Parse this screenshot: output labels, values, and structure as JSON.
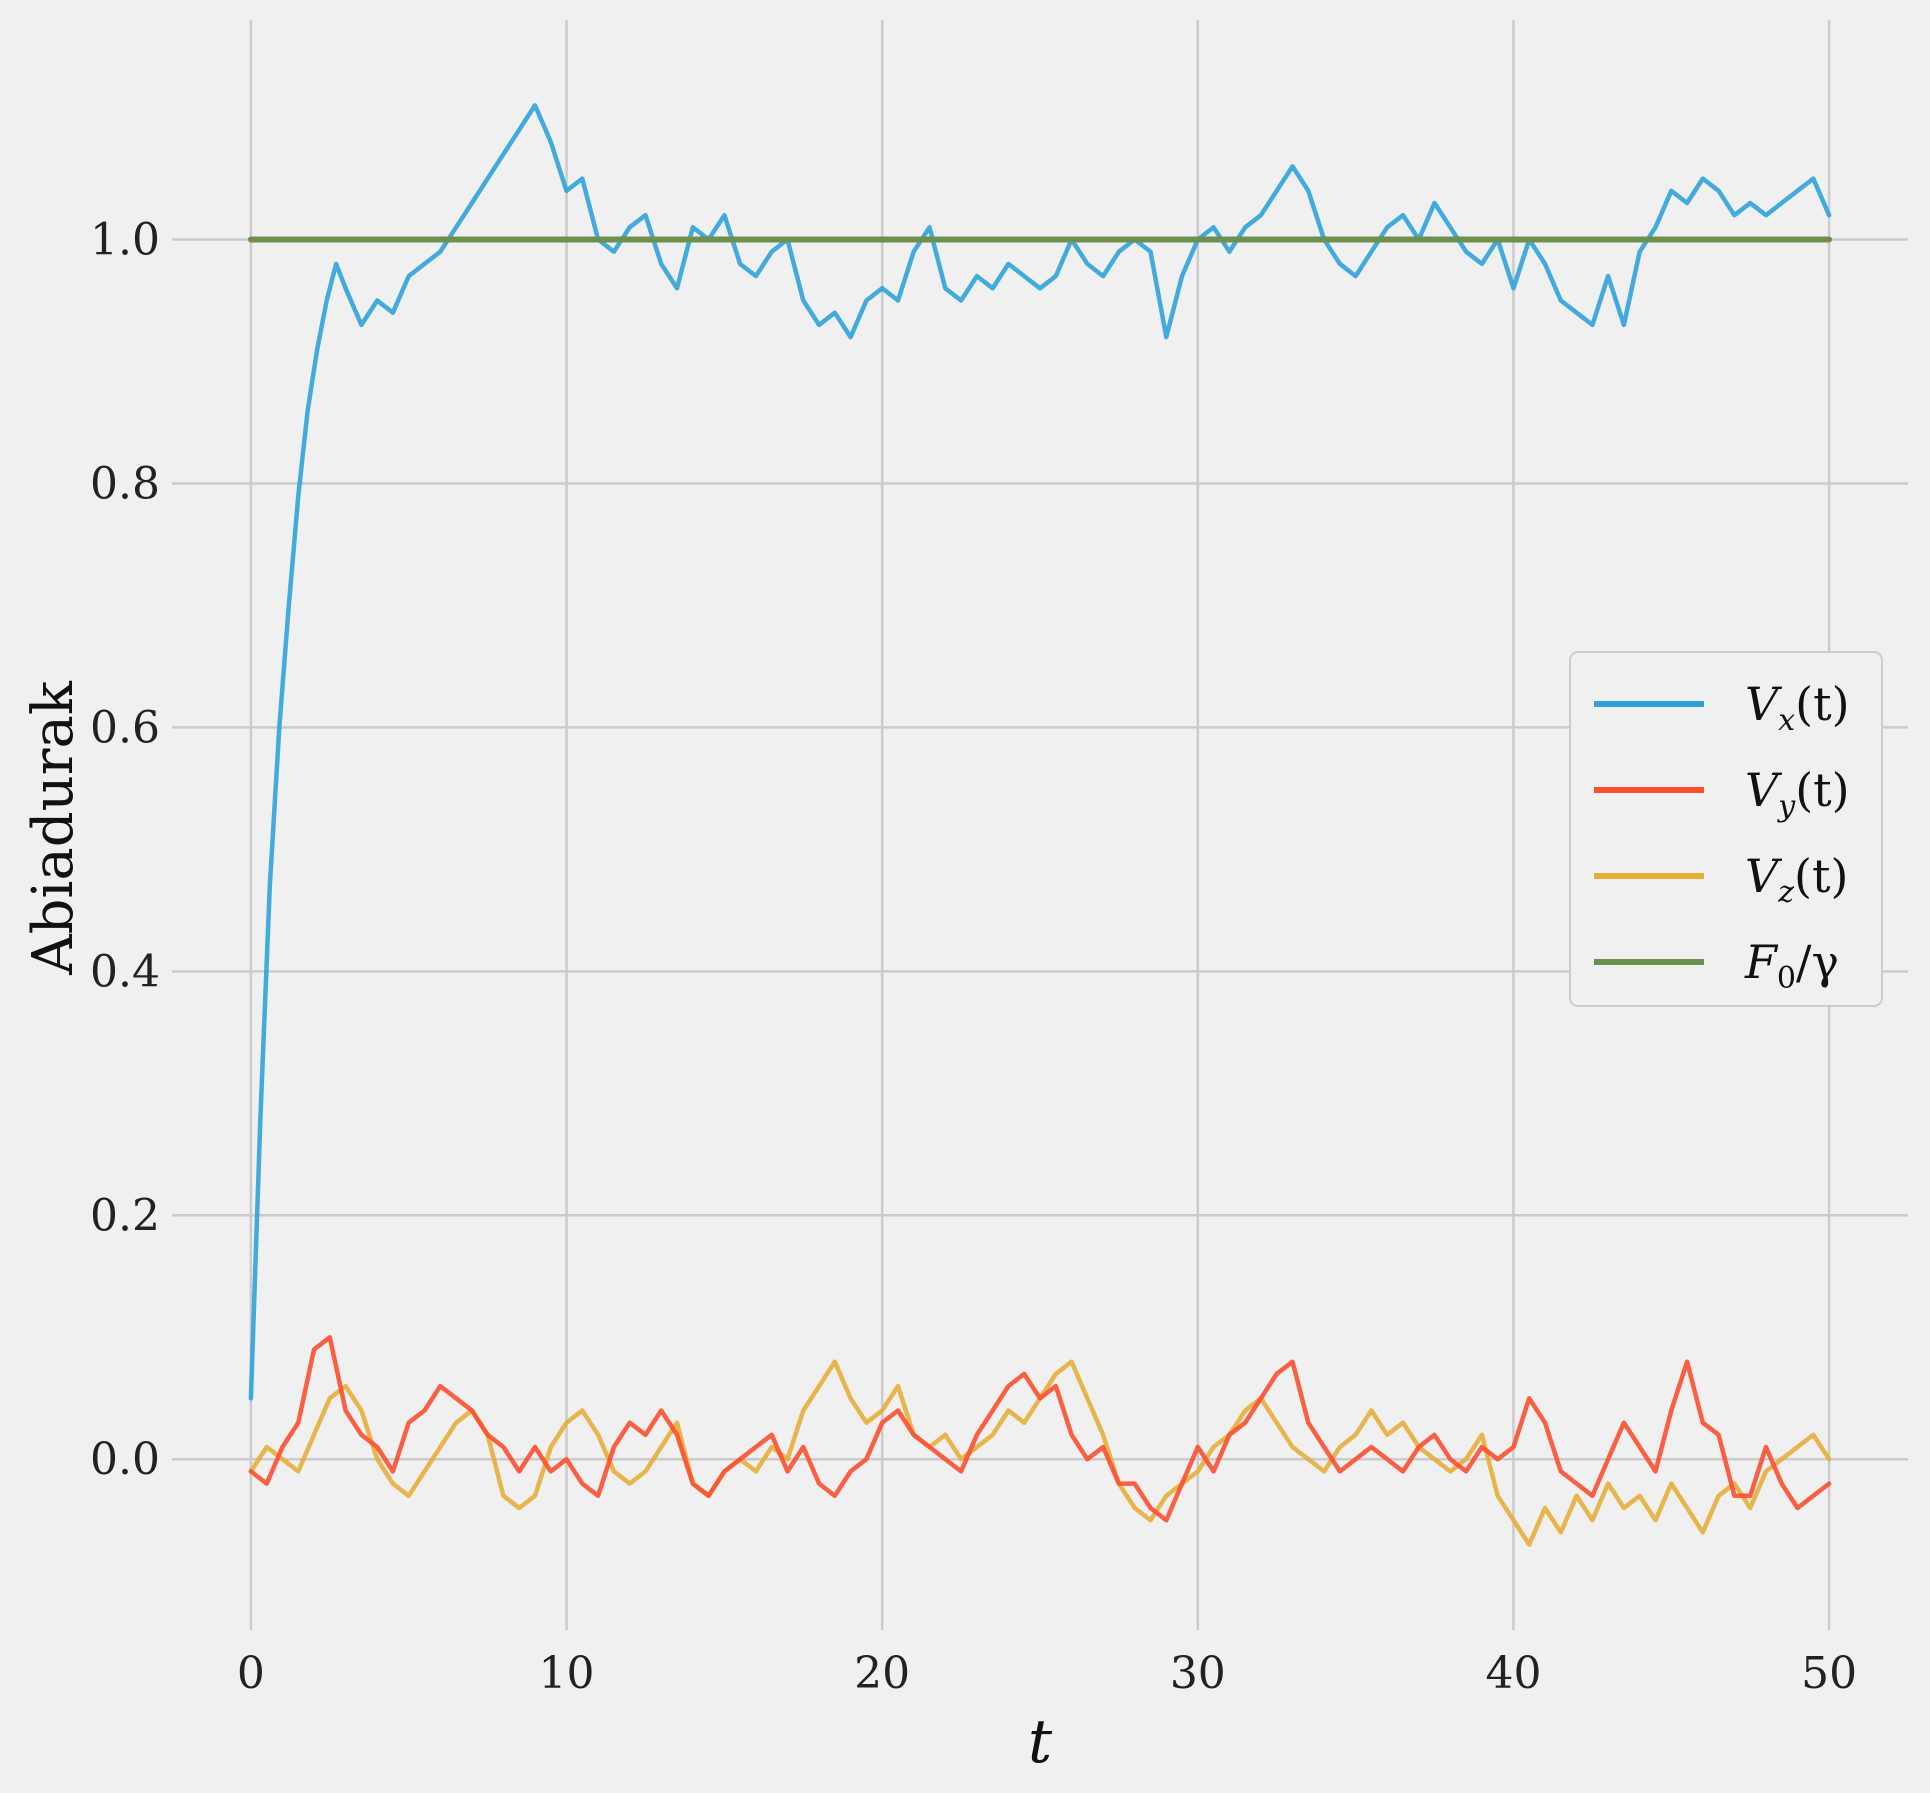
{
  "chart_data": {
    "type": "line",
    "xlabel": "t",
    "ylabel": "Abiadurak",
    "xlim": [
      -2.5,
      52.5
    ],
    "ylim": [
      -0.14,
      1.18
    ],
    "xticks": [
      0,
      10,
      20,
      30,
      40,
      50
    ],
    "yticks": [
      0.0,
      0.2,
      0.4,
      0.6,
      0.8,
      1.0
    ],
    "xtick_labels": [
      "0",
      "10",
      "20",
      "30",
      "40",
      "50"
    ],
    "ytick_labels": [
      "0.0",
      "0.2",
      "0.4",
      "0.6",
      "0.8",
      "1.0"
    ],
    "grid": true,
    "legend_position": "center-right",
    "series": [
      {
        "name": "V_x(t)",
        "label_main": "V",
        "label_sub": "x",
        "label_tail": "(t)",
        "color": "#30a2da",
        "x": [
          0,
          0.3,
          0.6,
          0.9,
          1.2,
          1.5,
          1.8,
          2.1,
          2.4,
          2.7,
          3.0,
          3.5,
          4.0,
          4.5,
          5.0,
          5.5,
          6.0,
          6.5,
          7.0,
          7.5,
          8.0,
          8.5,
          9.0,
          9.5,
          10.0,
          10.5,
          11.0,
          11.5,
          12.0,
          12.5,
          13.0,
          13.5,
          14.0,
          14.5,
          15.0,
          15.5,
          16.0,
          16.5,
          17.0,
          17.5,
          18.0,
          18.5,
          19.0,
          19.5,
          20.0,
          20.5,
          21.0,
          21.5,
          22.0,
          22.5,
          23.0,
          23.5,
          24.0,
          24.5,
          25.0,
          25.5,
          26.0,
          26.5,
          27.0,
          27.5,
          28.0,
          28.5,
          29.0,
          29.5,
          30.0,
          30.5,
          31.0,
          31.5,
          32.0,
          32.5,
          33.0,
          33.5,
          34.0,
          34.5,
          35.0,
          35.5,
          36.0,
          36.5,
          37.0,
          37.5,
          38.0,
          38.5,
          39.0,
          39.5,
          40.0,
          40.5,
          41.0,
          41.5,
          42.0,
          42.5,
          43.0,
          43.5,
          44.0,
          44.5,
          45.0,
          45.5,
          46.0,
          46.5,
          47.0,
          47.5,
          48.0,
          48.5,
          49.0,
          49.5,
          50.0
        ],
        "y": [
          0.05,
          0.28,
          0.47,
          0.6,
          0.7,
          0.79,
          0.86,
          0.91,
          0.95,
          0.98,
          0.96,
          0.93,
          0.95,
          0.94,
          0.97,
          0.98,
          0.99,
          1.01,
          1.03,
          1.05,
          1.07,
          1.09,
          1.11,
          1.08,
          1.04,
          1.05,
          1.0,
          0.99,
          1.01,
          1.02,
          0.98,
          0.96,
          1.01,
          1.0,
          1.02,
          0.98,
          0.97,
          0.99,
          1.0,
          0.95,
          0.93,
          0.94,
          0.92,
          0.95,
          0.96,
          0.95,
          0.99,
          1.01,
          0.96,
          0.95,
          0.97,
          0.96,
          0.98,
          0.97,
          0.96,
          0.97,
          1.0,
          0.98,
          0.97,
          0.99,
          1.0,
          0.99,
          0.92,
          0.97,
          1.0,
          1.01,
          0.99,
          1.01,
          1.02,
          1.04,
          1.06,
          1.04,
          1.0,
          0.98,
          0.97,
          0.99,
          1.01,
          1.02,
          1.0,
          1.03,
          1.01,
          0.99,
          0.98,
          1.0,
          0.96,
          1.0,
          0.98,
          0.95,
          0.94,
          0.93,
          0.97,
          0.93,
          0.99,
          1.01,
          1.04,
          1.03,
          1.05,
          1.04,
          1.02,
          1.03,
          1.02,
          1.03,
          1.04,
          1.05,
          1.02
        ]
      },
      {
        "name": "V_y(t)",
        "label_main": "V",
        "label_sub": "y",
        "label_tail": "(t)",
        "color": "#fc4f30",
        "x": [
          0,
          0.5,
          1.0,
          1.5,
          2.0,
          2.5,
          3.0,
          3.5,
          4.0,
          4.5,
          5.0,
          5.5,
          6.0,
          6.5,
          7.0,
          7.5,
          8.0,
          8.5,
          9.0,
          9.5,
          10.0,
          10.5,
          11.0,
          11.5,
          12.0,
          12.5,
          13.0,
          13.5,
          14.0,
          14.5,
          15.0,
          15.5,
          16.0,
          16.5,
          17.0,
          17.5,
          18.0,
          18.5,
          19.0,
          19.5,
          20.0,
          20.5,
          21.0,
          21.5,
          22.0,
          22.5,
          23.0,
          23.5,
          24.0,
          24.5,
          25.0,
          25.5,
          26.0,
          26.5,
          27.0,
          27.5,
          28.0,
          28.5,
          29.0,
          29.5,
          30.0,
          30.5,
          31.0,
          31.5,
          32.0,
          32.5,
          33.0,
          33.5,
          34.0,
          34.5,
          35.0,
          35.5,
          36.0,
          36.5,
          37.0,
          37.5,
          38.0,
          38.5,
          39.0,
          39.5,
          40.0,
          40.5,
          41.0,
          41.5,
          42.0,
          42.5,
          43.0,
          43.5,
          44.0,
          44.5,
          45.0,
          45.5,
          46.0,
          46.5,
          47.0,
          47.5,
          48.0,
          48.5,
          49.0,
          49.5,
          50.0
        ],
        "y": [
          -0.01,
          -0.02,
          0.01,
          0.03,
          0.09,
          0.1,
          0.04,
          0.02,
          0.01,
          -0.01,
          0.03,
          0.04,
          0.06,
          0.05,
          0.04,
          0.02,
          0.01,
          -0.01,
          0.01,
          -0.01,
          0.0,
          -0.02,
          -0.03,
          0.01,
          0.03,
          0.02,
          0.04,
          0.02,
          -0.02,
          -0.03,
          -0.01,
          0.0,
          0.01,
          0.02,
          -0.01,
          0.01,
          -0.02,
          -0.03,
          -0.01,
          0.0,
          0.03,
          0.04,
          0.02,
          0.01,
          0.0,
          -0.01,
          0.02,
          0.04,
          0.06,
          0.07,
          0.05,
          0.06,
          0.02,
          0.0,
          0.01,
          -0.02,
          -0.02,
          -0.04,
          -0.05,
          -0.02,
          0.01,
          -0.01,
          0.02,
          0.03,
          0.05,
          0.07,
          0.08,
          0.03,
          0.01,
          -0.01,
          0.0,
          0.01,
          0.0,
          -0.01,
          0.01,
          0.02,
          0.0,
          -0.01,
          0.01,
          0.0,
          0.01,
          0.05,
          0.03,
          -0.01,
          -0.02,
          -0.03,
          0.0,
          0.03,
          0.01,
          -0.01,
          0.04,
          0.08,
          0.03,
          0.02,
          -0.03,
          -0.03,
          0.01,
          -0.02,
          -0.04,
          -0.03,
          -0.02
        ]
      },
      {
        "name": "V_z(t)",
        "label_main": "V",
        "label_sub": "z",
        "label_tail": "(t)",
        "color": "#e5ae38",
        "x": [
          0,
          0.5,
          1.0,
          1.5,
          2.0,
          2.5,
          3.0,
          3.5,
          4.0,
          4.5,
          5.0,
          5.5,
          6.0,
          6.5,
          7.0,
          7.5,
          8.0,
          8.5,
          9.0,
          9.5,
          10.0,
          10.5,
          11.0,
          11.5,
          12.0,
          12.5,
          13.0,
          13.5,
          14.0,
          14.5,
          15.0,
          15.5,
          16.0,
          16.5,
          17.0,
          17.5,
          18.0,
          18.5,
          19.0,
          19.5,
          20.0,
          20.5,
          21.0,
          21.5,
          22.0,
          22.5,
          23.0,
          23.5,
          24.0,
          24.5,
          25.0,
          25.5,
          26.0,
          26.5,
          27.0,
          27.5,
          28.0,
          28.5,
          29.0,
          29.5,
          30.0,
          30.5,
          31.0,
          31.5,
          32.0,
          32.5,
          33.0,
          33.5,
          34.0,
          34.5,
          35.0,
          35.5,
          36.0,
          36.5,
          37.0,
          37.5,
          38.0,
          38.5,
          39.0,
          39.5,
          40.0,
          40.5,
          41.0,
          41.5,
          42.0,
          42.5,
          43.0,
          43.5,
          44.0,
          44.5,
          45.0,
          45.5,
          46.0,
          46.5,
          47.0,
          47.5,
          48.0,
          48.5,
          49.0,
          49.5,
          50.0
        ],
        "y": [
          -0.01,
          0.01,
          0.0,
          -0.01,
          0.02,
          0.05,
          0.06,
          0.04,
          0.0,
          -0.02,
          -0.03,
          -0.01,
          0.01,
          0.03,
          0.04,
          0.02,
          -0.03,
          -0.04,
          -0.03,
          0.01,
          0.03,
          0.04,
          0.02,
          -0.01,
          -0.02,
          -0.01,
          0.01,
          0.03,
          -0.02,
          -0.03,
          -0.01,
          0.0,
          -0.01,
          0.01,
          0.0,
          0.04,
          0.06,
          0.08,
          0.05,
          0.03,
          0.04,
          0.06,
          0.02,
          0.01,
          0.02,
          0.0,
          0.01,
          0.02,
          0.04,
          0.03,
          0.05,
          0.07,
          0.08,
          0.05,
          0.02,
          -0.02,
          -0.04,
          -0.05,
          -0.03,
          -0.02,
          -0.01,
          0.01,
          0.02,
          0.04,
          0.05,
          0.03,
          0.01,
          0.0,
          -0.01,
          0.01,
          0.02,
          0.04,
          0.02,
          0.03,
          0.01,
          0.0,
          -0.01,
          0.0,
          0.02,
          -0.03,
          -0.05,
          -0.07,
          -0.04,
          -0.06,
          -0.03,
          -0.05,
          -0.02,
          -0.04,
          -0.03,
          -0.05,
          -0.02,
          -0.04,
          -0.06,
          -0.03,
          -0.02,
          -0.04,
          -0.01,
          0.0,
          0.01,
          0.02,
          0.0
        ]
      },
      {
        "name": "F_0/γ",
        "label_main": "F",
        "label_sub": "0",
        "label_tail": "/γ",
        "color": "#6d904f",
        "x": [
          0,
          50
        ],
        "y": [
          1.0,
          1.0
        ]
      }
    ]
  }
}
